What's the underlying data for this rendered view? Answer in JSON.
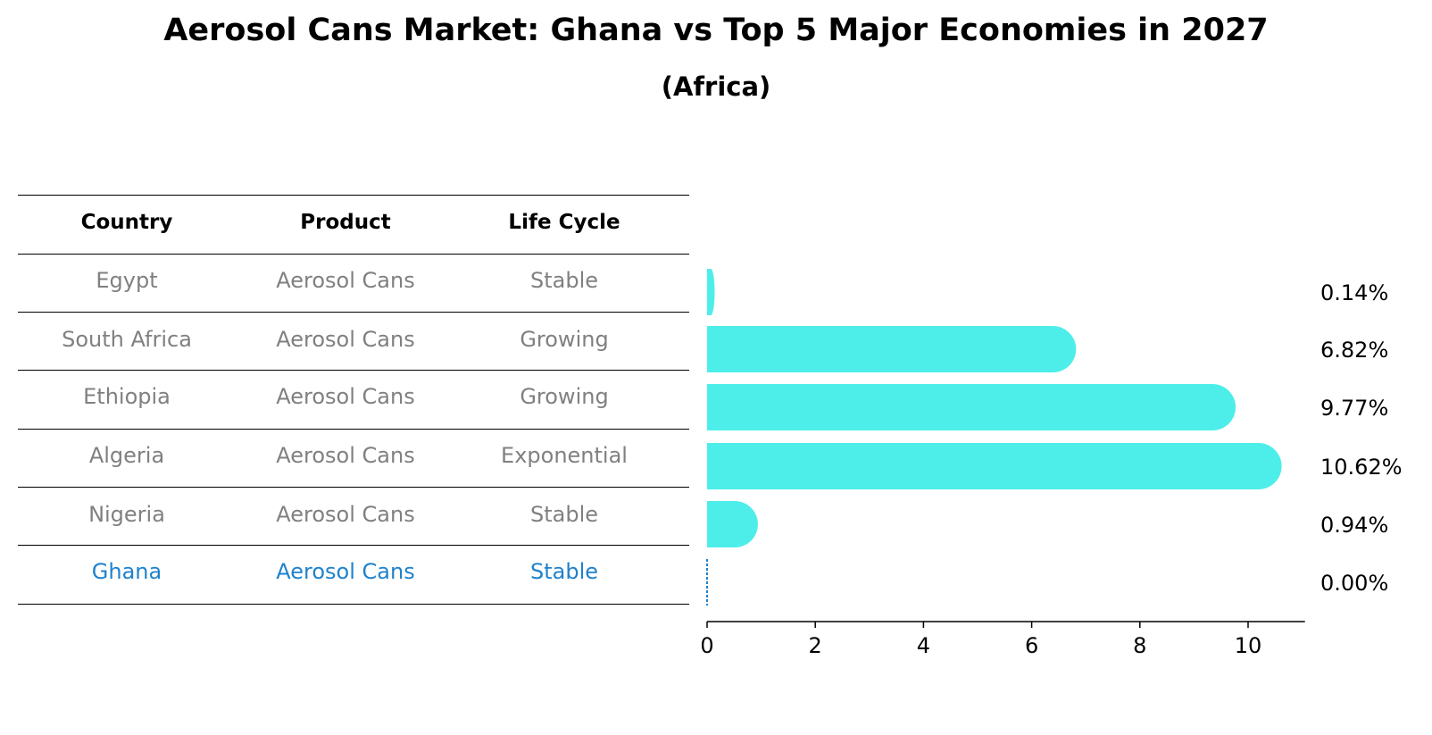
{
  "title": "Aerosol Cans Market: Ghana vs Top 5 Major Economies in 2027",
  "subtitle": "(Africa)",
  "table": {
    "headers": [
      "Country",
      "Product",
      "Life Cycle"
    ],
    "rows": [
      {
        "country": "Egypt",
        "product": "Aerosol Cans",
        "life_cycle": "Stable"
      },
      {
        "country": "South Africa",
        "product": "Aerosol Cans",
        "life_cycle": "Growing"
      },
      {
        "country": "Ethiopia",
        "product": "Aerosol Cans",
        "life_cycle": "Growing"
      },
      {
        "country": "Algeria",
        "product": "Aerosol Cans",
        "life_cycle": "Exponential"
      },
      {
        "country": "Nigeria",
        "product": "Aerosol Cans",
        "life_cycle": "Stable"
      },
      {
        "country": "Ghana",
        "product": "Aerosol Cans",
        "life_cycle": "Stable"
      }
    ]
  },
  "colors": {
    "bar": "#4deeea",
    "highlight": "#1f82cc",
    "muted_text": "#808080"
  },
  "chart_data": {
    "type": "bar",
    "orientation": "horizontal",
    "categories": [
      "Egypt",
      "South Africa",
      "Ethiopia",
      "Algeria",
      "Nigeria",
      "Ghana"
    ],
    "values": [
      0.14,
      6.82,
      9.77,
      10.62,
      0.94,
      0.0
    ],
    "value_labels": [
      "0.14%",
      "6.82%",
      "9.77%",
      "10.62%",
      "0.94%",
      "0.00%"
    ],
    "highlight": "Ghana",
    "xlim": [
      0,
      11.2
    ],
    "xticks": [
      0,
      2,
      4,
      6,
      8,
      10
    ],
    "title": "Aerosol Cans Market: Ghana vs Top 5 Major Economies in 2027",
    "xlabel": "",
    "ylabel": ""
  }
}
